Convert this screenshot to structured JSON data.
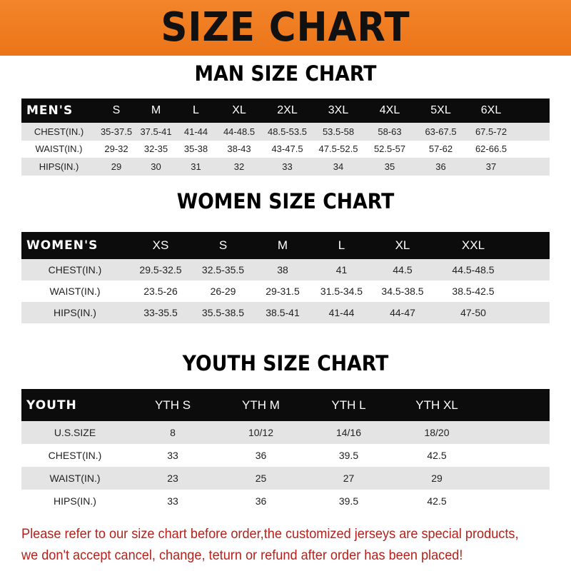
{
  "banner_title": "SIZE CHART",
  "colors": {
    "banner": "#f07a20",
    "header_row": "#0c0c0c",
    "alt_row": "#e4e4e4",
    "note_text": "#b3221c"
  },
  "tables": {
    "men": {
      "title": "MAN SIZE CHART",
      "header": [
        "MEN'S",
        "S",
        "M",
        "L",
        "XL",
        "2XL",
        "3XL",
        "4XL",
        "5XL",
        "6XL"
      ],
      "rows": [
        [
          "CHEST(IN.)",
          "35-37.5",
          "37.5-41",
          "41-44",
          "44-48.5",
          "48.5-53.5",
          "53.5-58",
          "58-63",
          "63-67.5",
          "67.5-72"
        ],
        [
          "WAIST(IN.)",
          "29-32",
          "32-35",
          "35-38",
          "38-43",
          "43-47.5",
          "47.5-52.5",
          "52.5-57",
          "57-62",
          "62-66.5"
        ],
        [
          "HIPS(IN.)",
          "29",
          "30",
          "31",
          "32",
          "33",
          "34",
          "35",
          "36",
          "37"
        ]
      ]
    },
    "women": {
      "title": "WOMEN SIZE CHART",
      "header": [
        "WOMEN'S",
        "XS",
        "S",
        "M",
        "L",
        "XL",
        "XXL"
      ],
      "rows": [
        [
          "CHEST(IN.)",
          "29.5-32.5",
          "32.5-35.5",
          "38",
          "41",
          "44.5",
          "44.5-48.5"
        ],
        [
          "WAIST(IN.)",
          "23.5-26",
          "26-29",
          "29-31.5",
          "31.5-34.5",
          "34.5-38.5",
          "38.5-42.5"
        ],
        [
          "HIPS(IN.)",
          "33-35.5",
          "35.5-38.5",
          "38.5-41",
          "41-44",
          "44-47",
          "47-50"
        ]
      ]
    },
    "youth": {
      "title": "YOUTH SIZE CHART",
      "header": [
        "YOUTH",
        "YTH S",
        "YTH M",
        "YTH L",
        "YTH XL"
      ],
      "rows": [
        [
          "U.S.SIZE",
          "8",
          "10/12",
          "14/16",
          "18/20"
        ],
        [
          "CHEST(IN.)",
          "33",
          "36",
          "39.5",
          "42.5"
        ],
        [
          "WAIST(IN.)",
          "23",
          "25",
          "27",
          "29"
        ],
        [
          "HIPS(IN.)",
          "33",
          "36",
          "39.5",
          "42.5"
        ]
      ]
    }
  },
  "note": {
    "line1": "Please refer to our size chart before order,the customized jerseys are special products,",
    "line2": "we don't accept cancel, change, teturn or refund after order has been placed!"
  }
}
